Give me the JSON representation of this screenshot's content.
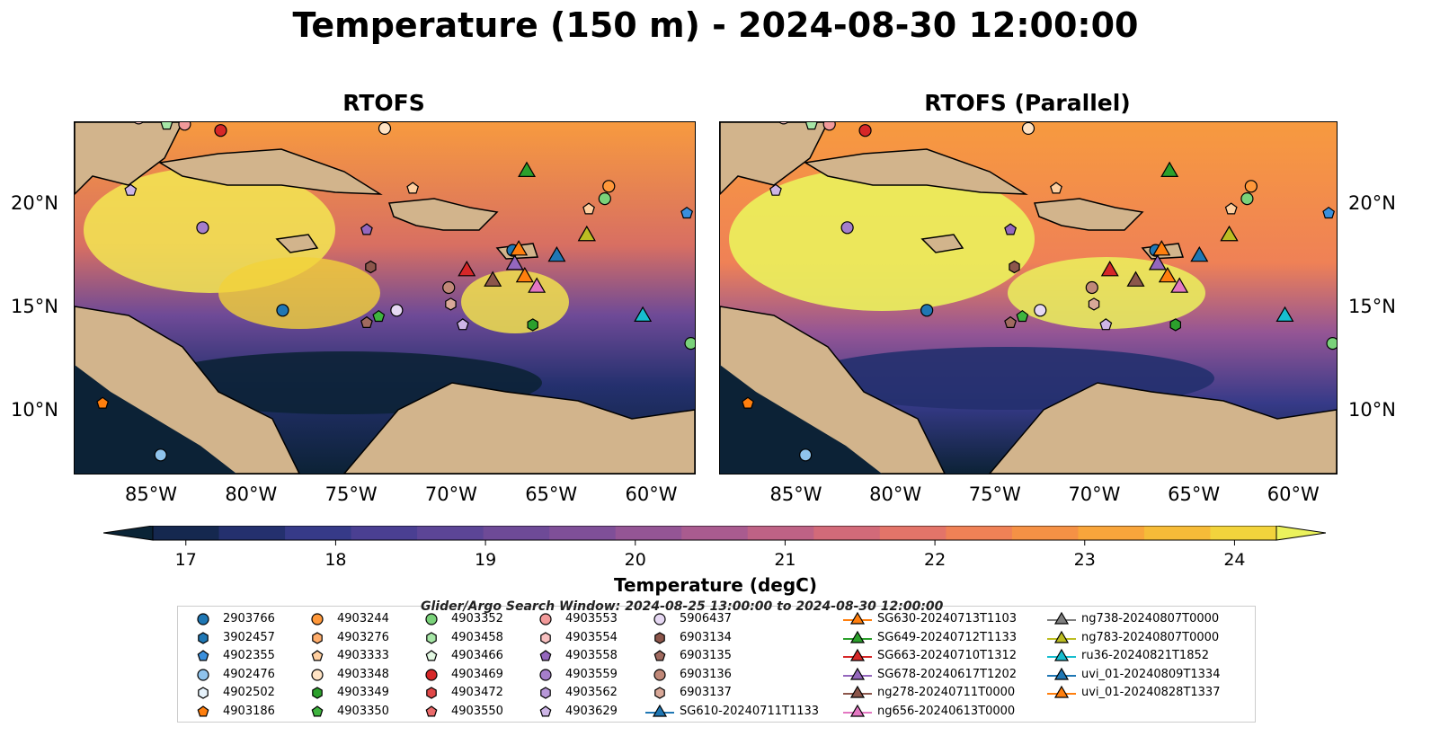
{
  "title": "Temperature (150 m) - 2024-08-30 12:00:00",
  "panels": [
    {
      "title": "RTOFS"
    },
    {
      "title": "RTOFS (Parallel)"
    }
  ],
  "map": {
    "lon_range": [
      -89,
      -58
    ],
    "lat_range": [
      7,
      24
    ],
    "x_ticks": [
      "85°W",
      "80°W",
      "75°W",
      "70°W",
      "65°W",
      "60°W"
    ],
    "y_ticks": [
      "20°N",
      "15°N",
      "10°N"
    ],
    "colors": {
      "land": "#d2b48c",
      "shelf": "#9ab7e0",
      "ocean_cold": "#0c2236",
      "ocean_warm": "#f7923d"
    }
  },
  "colorbar": {
    "label": "Temperature (degC)",
    "ticks": [
      "17",
      "18",
      "19",
      "20",
      "21",
      "22",
      "23",
      "24"
    ],
    "min": 17,
    "max": 24.5,
    "step": 0.5,
    "colors": [
      "#0a2436",
      "#15284f",
      "#24306e",
      "#363a88",
      "#4a3f92",
      "#5c4596",
      "#6e4a97",
      "#7f4f98",
      "#945595",
      "#a95b8f",
      "#be6285",
      "#d26a79",
      "#e37469",
      "#ef8156",
      "#f59145",
      "#f8a53b",
      "#f6bb38",
      "#f2d33c",
      "#ebf25c"
    ]
  },
  "legend": {
    "subtitle": "Glider/Argo Search Window: 2024-08-25 13:00:00 to 2024-08-30 12:00:00",
    "columns": [
      [
        {
          "label": "2903766",
          "marker": "circle",
          "color": "#1f77b4"
        },
        {
          "label": "3902457",
          "marker": "hexagon",
          "color": "#1f77b4"
        },
        {
          "label": "4902355",
          "marker": "pentagon",
          "color": "#3a8fdc"
        },
        {
          "label": "4902476",
          "marker": "circle",
          "color": "#8fc3ec"
        },
        {
          "label": "4902502",
          "marker": "hexagon",
          "color": "#e6f2fb"
        },
        {
          "label": "4903186",
          "marker": "pentagon",
          "color": "#ff7f0e"
        }
      ],
      [
        {
          "label": "4903244",
          "marker": "circle",
          "color": "#ff983a"
        },
        {
          "label": "4903276",
          "marker": "hexagon",
          "color": "#ffad6b"
        },
        {
          "label": "4903333",
          "marker": "pentagon",
          "color": "#ffcfa0"
        },
        {
          "label": "4903348",
          "marker": "circle",
          "color": "#ffe3c4"
        },
        {
          "label": "4903349",
          "marker": "hexagon",
          "color": "#2ca02c"
        },
        {
          "label": "4903350",
          "marker": "pentagon",
          "color": "#3fb43f"
        }
      ],
      [
        {
          "label": "4903352",
          "marker": "circle",
          "color": "#7ad27a"
        },
        {
          "label": "4903458",
          "marker": "hexagon",
          "color": "#a6e6a6"
        },
        {
          "label": "4903466",
          "marker": "pentagon",
          "color": "#e2f8e2"
        },
        {
          "label": "4903469",
          "marker": "circle",
          "color": "#d62728"
        },
        {
          "label": "4903472",
          "marker": "hexagon",
          "color": "#e04848"
        },
        {
          "label": "4903550",
          "marker": "pentagon",
          "color": "#ea6a6a"
        }
      ],
      [
        {
          "label": "4903553",
          "marker": "circle",
          "color": "#f29a9a"
        },
        {
          "label": "4903554",
          "marker": "hexagon",
          "color": "#f8c0c0"
        },
        {
          "label": "4903558",
          "marker": "pentagon",
          "color": "#9467bd"
        },
        {
          "label": "4903559",
          "marker": "circle",
          "color": "#a57ecb"
        },
        {
          "label": "4903562",
          "marker": "hexagon",
          "color": "#b797d8"
        },
        {
          "label": "4903629",
          "marker": "pentagon",
          "color": "#cdb5e6"
        }
      ],
      [
        {
          "label": "5906437",
          "marker": "circle",
          "color": "#e6d8f3"
        },
        {
          "label": "6903134",
          "marker": "hexagon",
          "color": "#8c564b"
        },
        {
          "label": "6903135",
          "marker": "pentagon",
          "color": "#a06a5f"
        },
        {
          "label": "6903136",
          "marker": "circle",
          "color": "#c08878"
        },
        {
          "label": "6903137",
          "marker": "hexagon",
          "color": "#d9a898"
        },
        {
          "label": "SG610-20240711T1133",
          "marker": "triangle-line",
          "color": "#1f77b4"
        }
      ],
      [
        {
          "label": "SG630-20240713T1103",
          "marker": "triangle-line",
          "color": "#ff7f0e"
        },
        {
          "label": "SG649-20240712T1133",
          "marker": "triangle-line",
          "color": "#2ca02c"
        },
        {
          "label": "SG663-20240710T1312",
          "marker": "triangle-line",
          "color": "#d62728"
        },
        {
          "label": "SG678-20240617T1202",
          "marker": "triangle-line",
          "color": "#9467bd"
        },
        {
          "label": "ng278-20240711T0000",
          "marker": "triangle-line",
          "color": "#8c564b"
        },
        {
          "label": "ng656-20240613T0000",
          "marker": "triangle-line",
          "color": "#e377c2"
        }
      ],
      [
        {
          "label": "ng738-20240807T0000",
          "marker": "triangle-line",
          "color": "#7f7f7f"
        },
        {
          "label": "ng783-20240807T0000",
          "marker": "triangle-line",
          "color": "#bcbd22"
        },
        {
          "label": "ru36-20240821T1852",
          "marker": "triangle-line",
          "color": "#17becf"
        },
        {
          "label": "uvi_01-20240809T1334",
          "marker": "triangle-line",
          "color": "#1f77b4"
        },
        {
          "label": "uvi_01-20240828T1337",
          "marker": "triangle-line",
          "color": "#ff7f0e"
        }
      ]
    ]
  },
  "markers": [
    {
      "lon": -78.6,
      "lat": 14.9,
      "marker": "circle",
      "color": "#1f77b4"
    },
    {
      "lon": -67.1,
      "lat": 17.8,
      "marker": "circle",
      "color": "#1f77b4"
    },
    {
      "lon": -86.2,
      "lat": 20.7,
      "marker": "pentagon",
      "color": "#cdb5e6"
    },
    {
      "lon": -82.6,
      "lat": 18.9,
      "marker": "circle",
      "color": "#a57ecb"
    },
    {
      "lon": -81.7,
      "lat": 23.6,
      "marker": "circle",
      "color": "#d62728"
    },
    {
      "lon": -73.5,
      "lat": 23.7,
      "marker": "circle",
      "color": "#ffe3c4"
    },
    {
      "lon": -72.1,
      "lat": 20.8,
      "marker": "pentagon",
      "color": "#ffcfa0"
    },
    {
      "lon": -74.4,
      "lat": 18.8,
      "marker": "pentagon",
      "color": "#9467bd"
    },
    {
      "lon": -74.2,
      "lat": 17.0,
      "marker": "hexagon",
      "color": "#8c564b"
    },
    {
      "lon": -70.3,
      "lat": 16.0,
      "marker": "circle",
      "color": "#c08878"
    },
    {
      "lon": -70.2,
      "lat": 15.2,
      "marker": "hexagon",
      "color": "#d9a898"
    },
    {
      "lon": -72.9,
      "lat": 14.9,
      "marker": "circle",
      "color": "#e6d8f3"
    },
    {
      "lon": -73.8,
      "lat": 14.6,
      "marker": "pentagon",
      "color": "#3fb43f"
    },
    {
      "lon": -74.4,
      "lat": 14.3,
      "marker": "pentagon",
      "color": "#a06a5f"
    },
    {
      "lon": -69.6,
      "lat": 14.2,
      "marker": "pentagon",
      "color": "#cdb5e6"
    },
    {
      "lon": -66.1,
      "lat": 14.2,
      "marker": "hexagon",
      "color": "#2ca02c"
    },
    {
      "lon": -62.3,
      "lat": 20.9,
      "marker": "circle",
      "color": "#ff983a"
    },
    {
      "lon": -62.5,
      "lat": 20.3,
      "marker": "circle",
      "color": "#7ad27a"
    },
    {
      "lon": -63.3,
      "lat": 19.8,
      "marker": "pentagon",
      "color": "#ffcfa0"
    },
    {
      "lon": -58.4,
      "lat": 19.6,
      "marker": "pentagon",
      "color": "#3a8fdc"
    },
    {
      "lon": -58.2,
      "lat": 13.3,
      "marker": "circle",
      "color": "#7ad27a"
    },
    {
      "lon": -87.6,
      "lat": 10.4,
      "marker": "pentagon",
      "color": "#ff7f0e"
    },
    {
      "lon": -84.7,
      "lat": 7.9,
      "marker": "circle",
      "color": "#8fc3ec"
    },
    {
      "lon": -85.8,
      "lat": 24.2,
      "marker": "circle",
      "color": "#f8c0c0"
    },
    {
      "lon": -84.4,
      "lat": 23.9,
      "marker": "pentagon",
      "color": "#a6e6a6"
    },
    {
      "lon": -83.5,
      "lat": 23.9,
      "marker": "circle",
      "color": "#f29a9a"
    },
    {
      "lon": -66.4,
      "lat": 21.6,
      "marker": "triangle",
      "color": "#2ca02c"
    },
    {
      "lon": -69.4,
      "lat": 16.8,
      "marker": "triangle",
      "color": "#d62728"
    },
    {
      "lon": -68.1,
      "lat": 16.3,
      "marker": "triangle",
      "color": "#8c564b"
    },
    {
      "lon": -67.0,
      "lat": 17.1,
      "marker": "triangle",
      "color": "#9467bd"
    },
    {
      "lon": -66.8,
      "lat": 17.8,
      "marker": "triangle",
      "color": "#ff7f0e"
    },
    {
      "lon": -66.5,
      "lat": 16.5,
      "marker": "triangle",
      "color": "#ff7f0e"
    },
    {
      "lon": -65.9,
      "lat": 16.0,
      "marker": "triangle",
      "color": "#e377c2"
    },
    {
      "lon": -64.9,
      "lat": 17.5,
      "marker": "triangle",
      "color": "#1f77b4"
    },
    {
      "lon": -63.4,
      "lat": 18.5,
      "marker": "triangle",
      "color": "#7f7f7f"
    },
    {
      "lon": -63.4,
      "lat": 18.5,
      "marker": "triangle",
      "color": "#bcbd22"
    },
    {
      "lon": -60.6,
      "lat": 14.6,
      "marker": "triangle",
      "color": "#17becf"
    }
  ]
}
